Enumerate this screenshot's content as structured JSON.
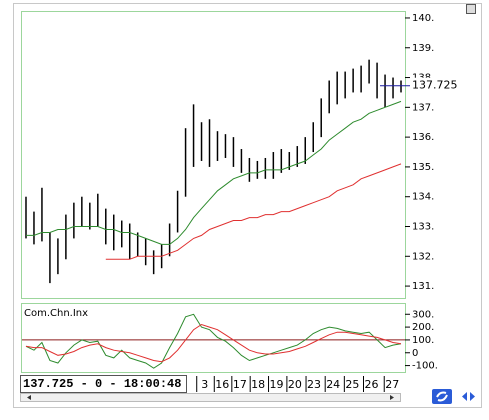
{
  "chart_data": [
    {
      "type": "hl_bar",
      "color": "#000000",
      "high": [
        134.0,
        133.5,
        134.3,
        132.8,
        132.6,
        133.4,
        133.8,
        134.0,
        133.8,
        134.1,
        133.6,
        133.4,
        133.2,
        133.1,
        132.8,
        132.6,
        132.2,
        132.4,
        133.1,
        134.2,
        136.3,
        137.1,
        136.5,
        136.6,
        136.2,
        136.1,
        136.0,
        135.6,
        135.3,
        135.2,
        135.3,
        135.5,
        135.6,
        135.5,
        135.7,
        136.0,
        136.5,
        137.3,
        137.9,
        138.2,
        138.2,
        138.3,
        138.4,
        138.6,
        138.5,
        138.1,
        138.0,
        137.9
      ],
      "low": [
        132.6,
        132.4,
        132.5,
        131.1,
        131.4,
        131.9,
        132.6,
        133.0,
        132.9,
        133.0,
        132.4,
        132.2,
        132.3,
        131.9,
        132.0,
        131.7,
        131.4,
        131.6,
        132.0,
        132.8,
        134.0,
        135.0,
        135.2,
        135.0,
        135.2,
        135.3,
        135.0,
        134.8,
        134.5,
        134.6,
        134.6,
        134.6,
        134.8,
        134.9,
        135.0,
        135.1,
        135.5,
        136.0,
        136.8,
        137.1,
        137.3,
        137.5,
        137.5,
        137.8,
        137.3,
        137.0,
        137.3,
        137.5
      ],
      "overlays": [
        {
          "color": "#2e8b2e",
          "values": [
            132.7,
            132.7,
            132.8,
            132.8,
            132.9,
            132.9,
            133.0,
            133.0,
            133.0,
            133.0,
            132.9,
            132.9,
            132.8,
            132.8,
            132.7,
            132.6,
            132.5,
            132.4,
            132.4,
            132.6,
            132.9,
            133.3,
            133.6,
            133.9,
            134.2,
            134.4,
            134.6,
            134.7,
            134.8,
            134.8,
            134.9,
            134.9,
            134.9,
            135.0,
            135.1,
            135.2,
            135.4,
            135.6,
            135.9,
            136.1,
            136.3,
            136.5,
            136.6,
            136.8,
            136.9,
            137.0,
            137.1,
            137.2
          ]
        },
        {
          "color": "#e03030",
          "values": [
            null,
            null,
            null,
            null,
            null,
            null,
            null,
            null,
            null,
            null,
            131.9,
            131.9,
            131.9,
            131.9,
            132.0,
            132.0,
            132.0,
            132.0,
            132.1,
            132.2,
            132.4,
            132.6,
            132.7,
            132.9,
            133.0,
            133.1,
            133.2,
            133.2,
            133.3,
            133.3,
            133.4,
            133.4,
            133.5,
            133.5,
            133.6,
            133.7,
            133.8,
            133.9,
            134.0,
            134.2,
            134.3,
            134.4,
            134.6,
            134.7,
            134.8,
            134.9,
            135.0,
            135.1
          ]
        }
      ],
      "xlim": [
        -0.5,
        47.5
      ],
      "ylim": [
        130.6,
        140.2
      ],
      "yticks": [
        {
          "value": 131,
          "label": "131."
        },
        {
          "value": 132,
          "label": "132."
        },
        {
          "value": 133,
          "label": "133."
        },
        {
          "value": 134,
          "label": "134."
        },
        {
          "value": 135,
          "label": "135."
        },
        {
          "value": 136,
          "label": "136."
        },
        {
          "value": 137,
          "label": "137."
        },
        {
          "value": 138,
          "label": "138."
        },
        {
          "value": 139,
          "label": "139."
        },
        {
          "value": 140,
          "label": "140."
        }
      ],
      "last_value": 137.725,
      "last_value_color": "#1a1aa0"
    },
    {
      "type": "line",
      "title": "Com.Chn.Inx",
      "series": [
        {
          "color": "#2e8b2e",
          "values": [
            50,
            20,
            80,
            -60,
            -80,
            0,
            60,
            100,
            80,
            90,
            -20,
            -40,
            20,
            -40,
            -60,
            -80,
            -120,
            -80,
            40,
            150,
            280,
            300,
            200,
            180,
            120,
            90,
            40,
            -20,
            -60,
            -40,
            -20,
            0,
            20,
            40,
            60,
            100,
            150,
            180,
            200,
            190,
            170,
            160,
            150,
            160,
            100,
            40,
            60,
            70
          ]
        },
        {
          "color": "#e03030",
          "values": [
            50,
            40,
            40,
            10,
            -20,
            -10,
            10,
            40,
            60,
            70,
            40,
            20,
            10,
            0,
            -20,
            -40,
            -60,
            -70,
            -40,
            20,
            100,
            180,
            220,
            200,
            180,
            140,
            100,
            60,
            20,
            0,
            -10,
            -10,
            0,
            10,
            30,
            50,
            80,
            110,
            140,
            160,
            160,
            150,
            140,
            130,
            120,
            100,
            80,
            70
          ]
        }
      ],
      "reference_line": 100,
      "reference_color": "#8b1a1a",
      "xlim": [
        -0.5,
        47.5
      ],
      "ylim": [
        -150,
        380
      ],
      "yticks": [
        {
          "value": -100,
          "label": "-100."
        },
        0,
        {
          "value": 100,
          "label": "100."
        },
        {
          "value": 200,
          "label": "200."
        },
        {
          "value": 300,
          "label": "300."
        }
      ],
      "xticks": [
        {
          "value": 22.4,
          "label": "3"
        },
        {
          "value": 24.6,
          "label": "16"
        },
        {
          "value": 26.8,
          "label": "17"
        },
        {
          "value": 29.1,
          "label": "18"
        },
        {
          "value": 31.4,
          "label": "19"
        },
        {
          "value": 33.7,
          "label": "20"
        },
        {
          "value": 36.1,
          "label": "23"
        },
        {
          "value": 38.5,
          "label": "24"
        },
        {
          "value": 40.9,
          "label": "25"
        },
        {
          "value": 43.3,
          "label": "26"
        },
        {
          "value": 45.9,
          "label": "27"
        }
      ]
    }
  ],
  "status": "137.725 - 0 - 18:00:48"
}
